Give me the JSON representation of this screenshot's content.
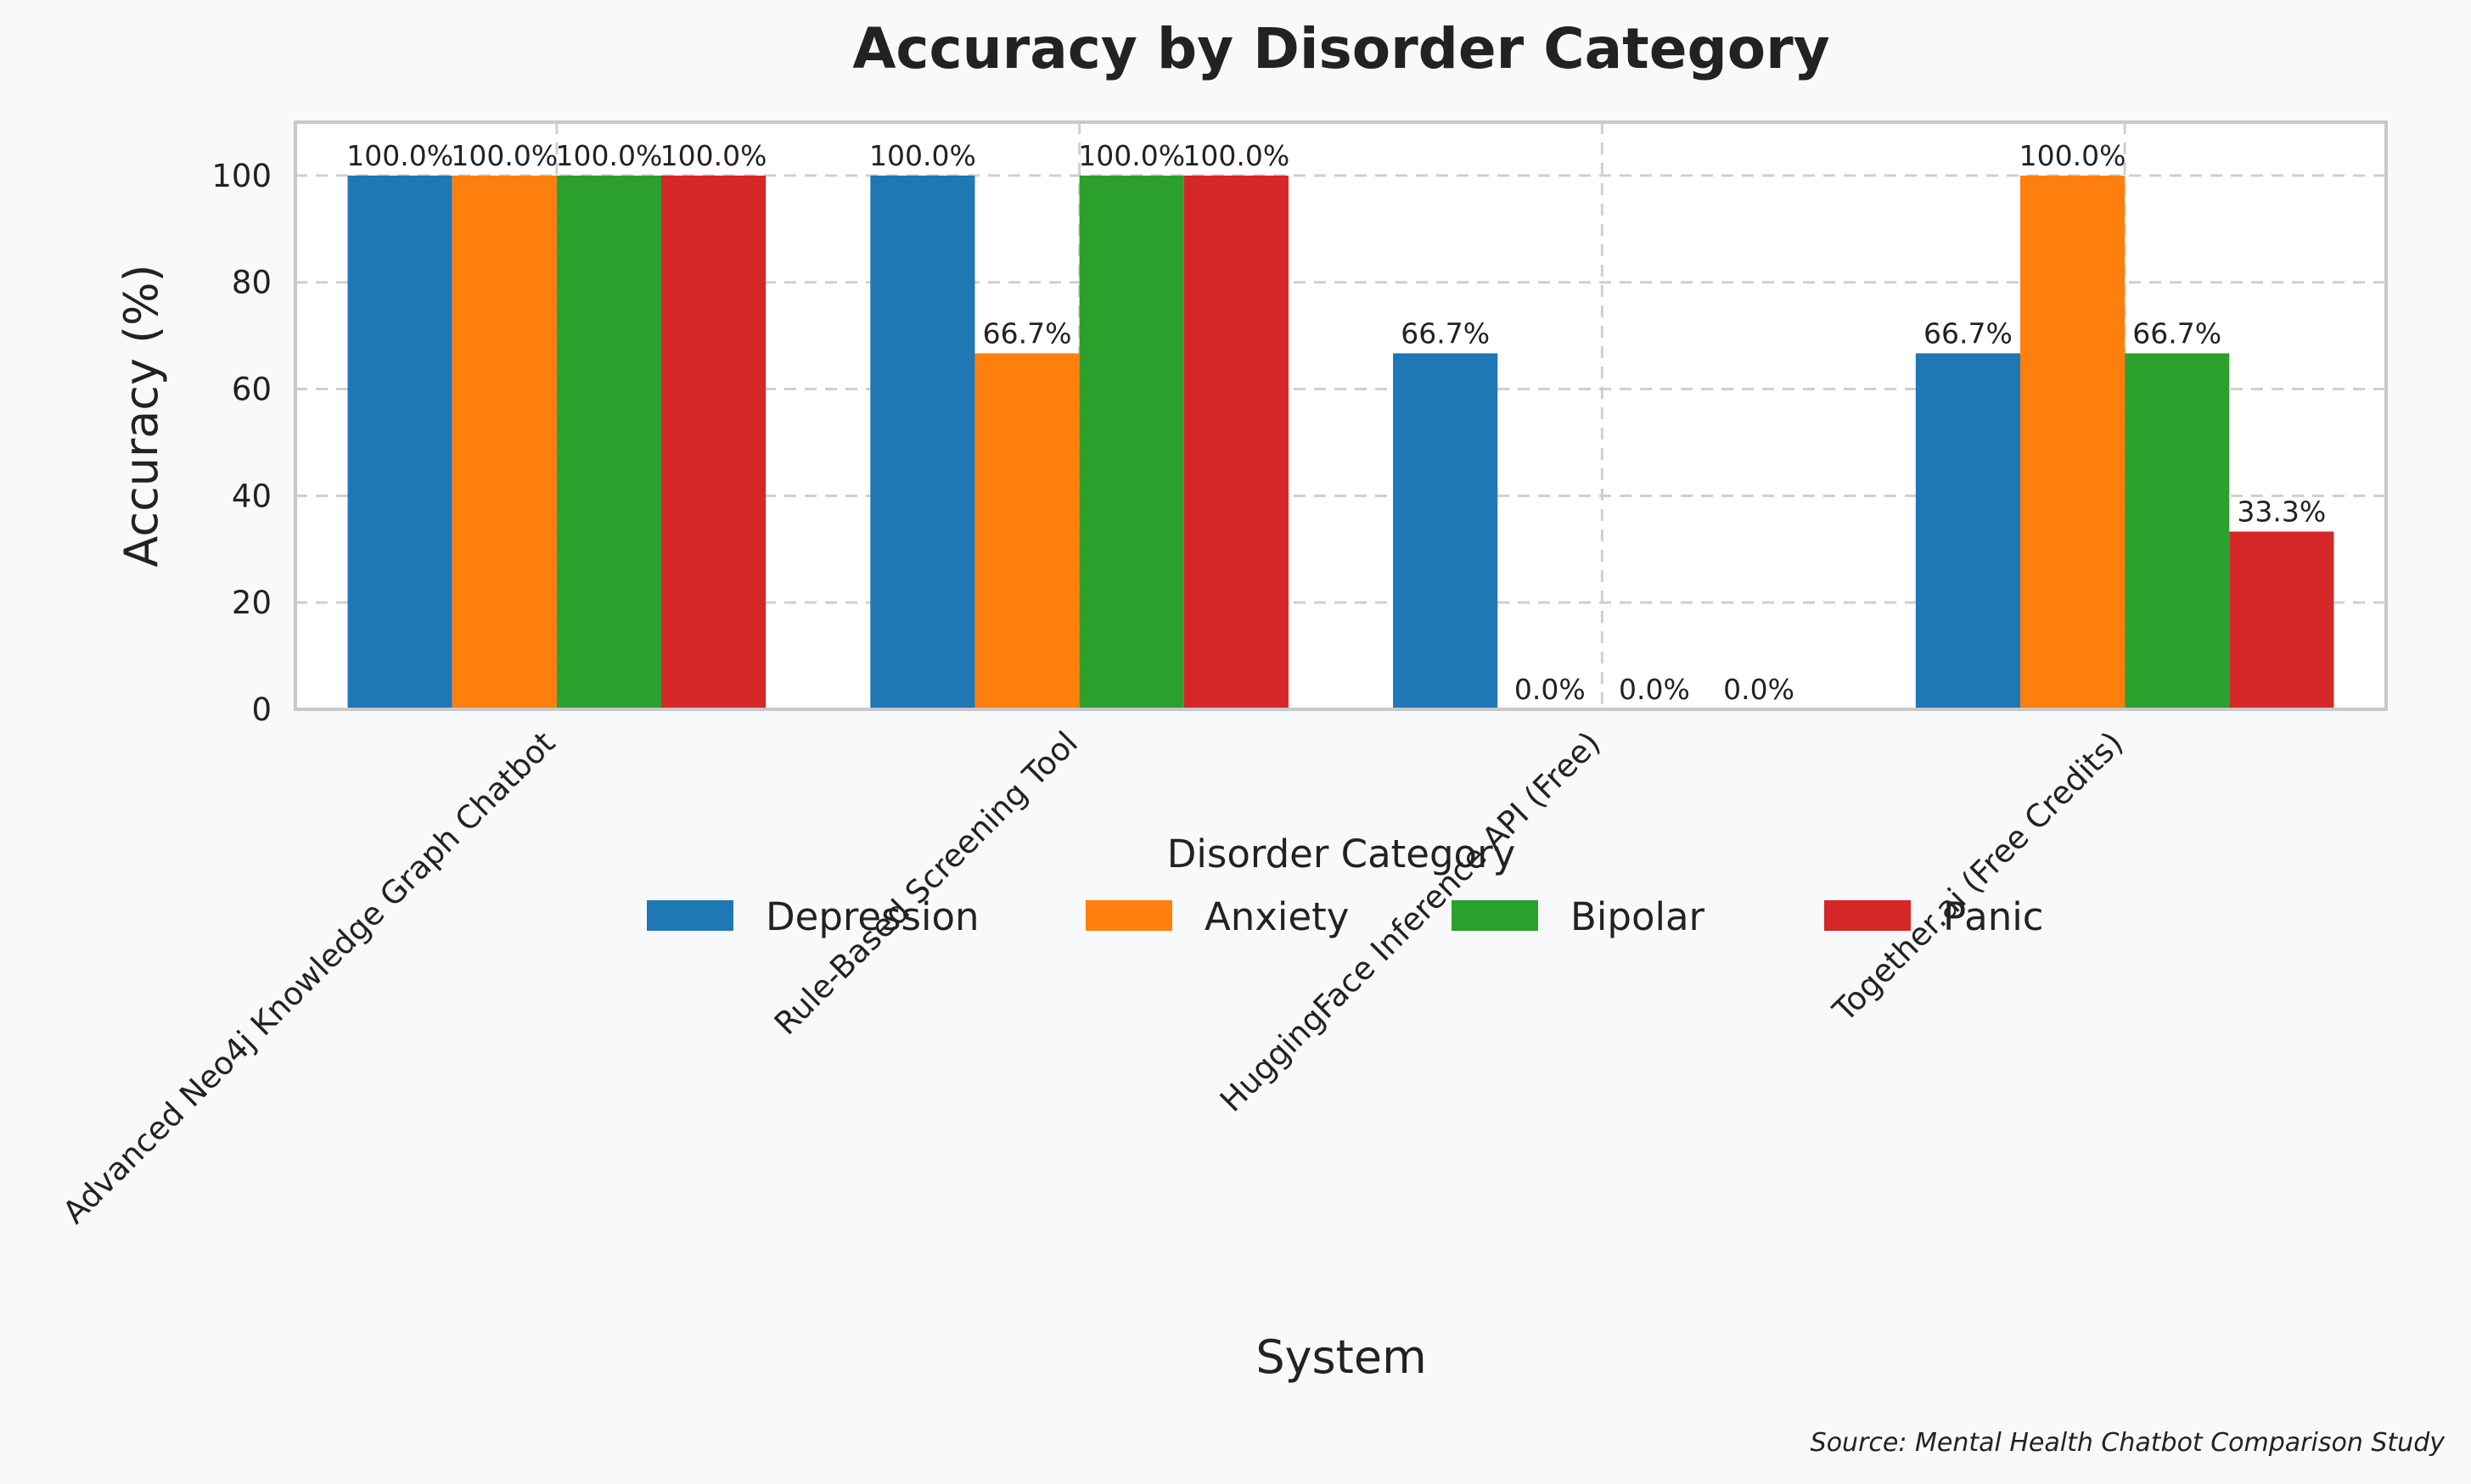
{
  "chart_data": {
    "type": "bar",
    "title": "Accuracy by Disorder Category",
    "xlabel": "System",
    "ylabel": "Accuracy (%)",
    "ylim": [
      0,
      110
    ],
    "yticks": [
      0,
      20,
      40,
      60,
      80,
      100
    ],
    "grid": true,
    "categories": [
      "Advanced Neo4j Knowledge Graph Chatbot",
      "Rule-Based Screening Tool",
      "HuggingFace Inference API (Free)",
      "Together.ai (Free Credits)"
    ],
    "series": [
      {
        "name": "Depression",
        "color": "#1f77b4",
        "values": [
          100.0,
          100.0,
          66.7,
          66.7
        ],
        "labels": [
          "100.0%",
          "100.0%",
          "66.7%",
          "66.7%"
        ]
      },
      {
        "name": "Anxiety",
        "color": "#ff7f0e",
        "values": [
          100.0,
          66.7,
          0.0,
          100.0
        ],
        "labels": [
          "100.0%",
          "66.7%",
          "0.0%",
          "100.0%"
        ]
      },
      {
        "name": "Bipolar",
        "color": "#2ca02c",
        "values": [
          100.0,
          100.0,
          0.0,
          66.7
        ],
        "labels": [
          "100.0%",
          "100.0%",
          "0.0%",
          "66.7%"
        ]
      },
      {
        "name": "Panic",
        "color": "#d62728",
        "values": [
          100.0,
          100.0,
          0.0,
          33.3
        ],
        "labels": [
          "100.0%",
          "100.0%",
          "0.0%",
          "33.3%"
        ]
      }
    ],
    "legend": {
      "title": "Disorder Category",
      "placement": "below-plot"
    },
    "source": "Source: Mental Health Chatbot Comparison Study"
  }
}
